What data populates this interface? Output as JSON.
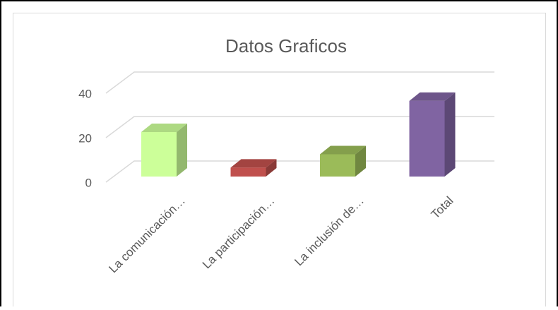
{
  "chart_data": {
    "type": "bar",
    "title": "Datos Graficos",
    "categories": [
      "La comunicación…",
      "La participación…",
      "La inclusión de…",
      "Total"
    ],
    "values": [
      20,
      4,
      10,
      34
    ],
    "colors": [
      "#ccff99",
      "#c0504d",
      "#9bbb59",
      "#8064a2"
    ],
    "ylim": [
      0,
      40
    ],
    "yticks": [
      0,
      20,
      40
    ],
    "grid": true
  }
}
